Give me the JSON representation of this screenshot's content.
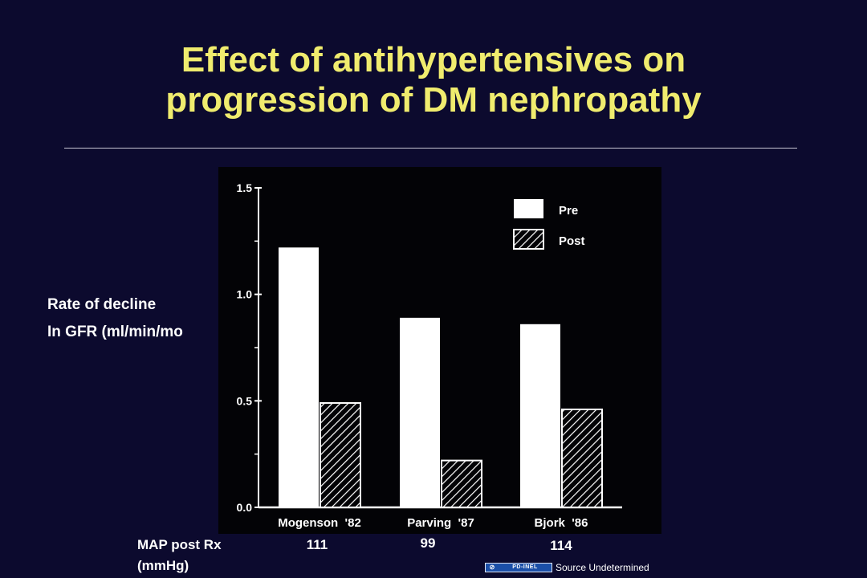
{
  "slide": {
    "title_line1": "Effect of antihypertensives on",
    "title_line2": "progression of DM nephropathy"
  },
  "y_axis_label": {
    "line1": "Rate of decline",
    "line2": "In GFR (ml/min/mo"
  },
  "map": {
    "label_line1": "MAP post Rx",
    "label_line2": "(mmHg)",
    "values": [
      "111",
      "99",
      "114"
    ]
  },
  "source": {
    "badge_text": "PD-INEL",
    "text": "Source Undetermined"
  },
  "colors": {
    "background": "#0c0a2e",
    "title": "#f0ec6e",
    "chart_background": "#030306",
    "chart_ink": "#ffffff"
  },
  "chart_data": {
    "type": "bar",
    "categories": [
      "Mogenson  '82",
      "Parving  '87",
      "Bjork  '86"
    ],
    "series": [
      {
        "name": "Pre",
        "values": [
          1.22,
          0.89,
          0.86
        ],
        "fill": "solid"
      },
      {
        "name": "Post",
        "values": [
          0.49,
          0.22,
          0.46
        ],
        "fill": "hatched"
      }
    ],
    "yticks": [
      "0.0",
      "0.5",
      "1.0",
      "1.5"
    ],
    "ytick_values": [
      0,
      0.5,
      1.0,
      1.5
    ],
    "ylim": [
      0,
      1.5
    ],
    "legend_position": "top-right",
    "grid": false
  }
}
